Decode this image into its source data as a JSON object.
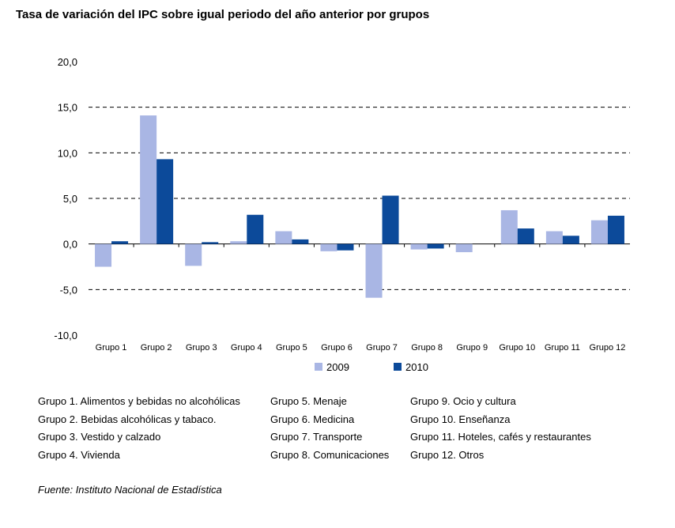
{
  "chart_data": {
    "type": "bar",
    "title": "Tasa de variación del IPC sobre igual periodo del año anterior por grupos",
    "categories": [
      "Grupo 1",
      "Grupo 2",
      "Grupo 3",
      "Grupo 4",
      "Grupo 5",
      "Grupo 6",
      "Grupo 7",
      "Grupo 8",
      "Grupo 9",
      "Grupo 10",
      "Grupo 11",
      "Grupo 12"
    ],
    "series": [
      {
        "name": "2009",
        "color": "#a9b6e4",
        "values": [
          -2.5,
          14.1,
          -2.4,
          0.3,
          1.4,
          -0.8,
          -5.9,
          -0.6,
          -0.9,
          3.7,
          1.4,
          2.6
        ]
      },
      {
        "name": "2010",
        "color": "#0c4a9a",
        "values": [
          0.3,
          9.3,
          0.2,
          3.2,
          0.5,
          -0.7,
          5.3,
          -0.5,
          0.0,
          1.7,
          0.9,
          3.1
        ]
      }
    ],
    "ylim": [
      -10,
      20
    ],
    "yticks": [
      "20,0",
      "15,0",
      "10,0",
      "5,0",
      "0,0",
      "-5,0",
      "-10,0"
    ],
    "ytick_values": [
      20,
      15,
      10,
      5,
      0,
      -5,
      -10
    ],
    "grid": "dashed",
    "legend": "bottom"
  },
  "descriptions": {
    "col1": [
      "Grupo 1. Alimentos y bebidas no alcohólicas",
      "Grupo 2. Bebidas alcohólicas y  tabaco.",
      "Grupo 3. Vestido y calzado",
      "Grupo 4. Vivienda"
    ],
    "col2": [
      "Grupo 5. Menaje",
      "Grupo 6. Medicina",
      "Grupo 7. Transporte",
      "Grupo 8. Comunicaciones"
    ],
    "col3": [
      "Grupo 9. Ocio y cultura",
      "Grupo 10. Enseñanza",
      "Grupo 11. Hoteles, cafés y restaurantes",
      "Grupo 12. Otros"
    ]
  },
  "source": "Fuente: Instituto Nacional de Estadística"
}
